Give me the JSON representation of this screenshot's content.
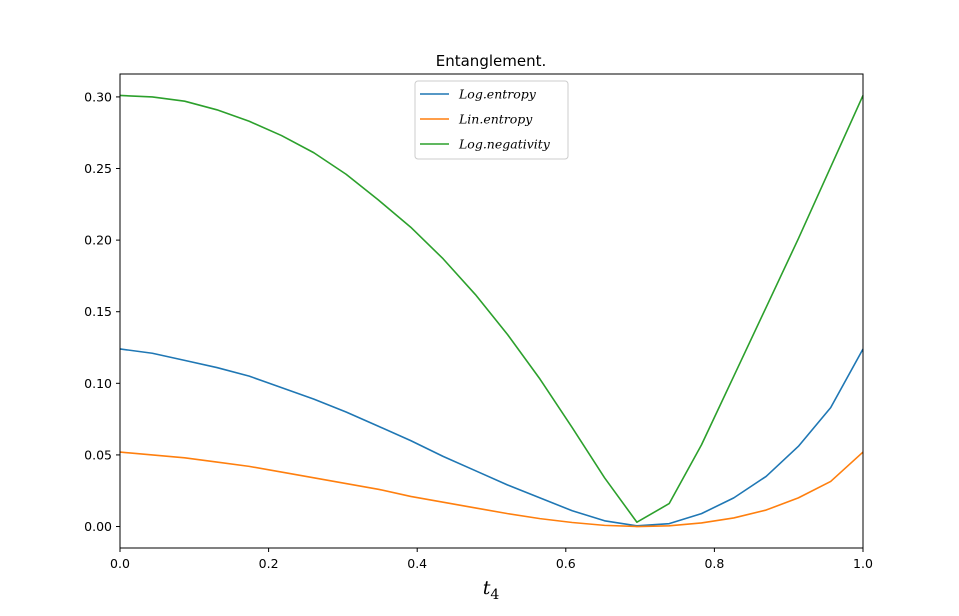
{
  "chart_data": {
    "type": "line",
    "title": "Entanglement.",
    "xlabel": "t4",
    "ylabel": "",
    "xlim": [
      0.0,
      1.0
    ],
    "ylim": [
      -0.015,
      0.316
    ],
    "xticks": [
      0.0,
      0.2,
      0.4,
      0.6,
      0.8,
      1.0
    ],
    "xtick_labels": [
      "0.0",
      "0.2",
      "0.4",
      "0.6",
      "0.8",
      "1.0"
    ],
    "yticks": [
      0.0,
      0.05,
      0.1,
      0.15,
      0.2,
      0.25,
      0.3
    ],
    "ytick_labels": [
      "0.00",
      "0.05",
      "0.10",
      "0.15",
      "0.20",
      "0.25",
      "0.30"
    ],
    "grid": false,
    "legend_position": "top-center",
    "x": [
      0.0,
      0.0435,
      0.087,
      0.1304,
      0.1739,
      0.2174,
      0.2609,
      0.3043,
      0.3478,
      0.3913,
      0.4348,
      0.4783,
      0.5217,
      0.5652,
      0.6087,
      0.6522,
      0.6957,
      0.7391,
      0.7826,
      0.8261,
      0.8696,
      0.913,
      0.9565,
      1.0
    ],
    "series": [
      {
        "name": "Log.entropy",
        "color": "#1f77b4",
        "values": [
          0.124,
          0.121,
          0.116,
          0.111,
          0.105,
          0.097,
          0.089,
          0.08,
          0.07,
          0.06,
          0.049,
          0.039,
          0.029,
          0.02,
          0.011,
          0.004,
          0.0005,
          0.002,
          0.009,
          0.02,
          0.035,
          0.056,
          0.083,
          0.124
        ]
      },
      {
        "name": "Lin.entropy",
        "color": "#ff7f0e",
        "values": [
          0.052,
          0.05,
          0.048,
          0.045,
          0.042,
          0.038,
          0.034,
          0.03,
          0.026,
          0.021,
          0.017,
          0.013,
          0.009,
          0.0055,
          0.0028,
          0.0008,
          0.0,
          0.0005,
          0.0025,
          0.006,
          0.0115,
          0.02,
          0.0315,
          0.052
        ]
      },
      {
        "name": "Log.negativity",
        "color": "#2ca02c",
        "values": [
          0.301,
          0.3,
          0.297,
          0.291,
          0.283,
          0.273,
          0.261,
          0.246,
          0.228,
          0.209,
          0.187,
          0.162,
          0.134,
          0.103,
          0.069,
          0.034,
          0.003,
          0.016,
          0.057,
          0.105,
          0.153,
          0.201,
          0.251,
          0.301
        ]
      }
    ]
  }
}
